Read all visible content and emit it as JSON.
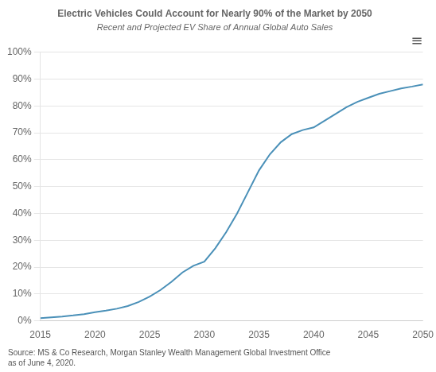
{
  "chart_data": {
    "type": "line",
    "title": "Electric Vehicles Could Account for Nearly 90% of the Market by 2050",
    "subtitle": "Recent and Projected EV Share of Annual Global Auto Sales",
    "source": "Source: MS & Co Research, Morgan Stanley Wealth Management Global Investment Office\nas of June 4, 2020.",
    "annotations": [
      "≡"
    ],
    "x": [
      2015,
      2016,
      2017,
      2018,
      2019,
      2020,
      2021,
      2022,
      2023,
      2024,
      2025,
      2026,
      2027,
      2028,
      2029,
      2030,
      2031,
      2032,
      2033,
      2034,
      2035,
      2036,
      2037,
      2038,
      2039,
      2040,
      2041,
      2042,
      2043,
      2044,
      2045,
      2046,
      2047,
      2048,
      2049,
      2050
    ],
    "values": [
      1.0,
      1.3,
      1.6,
      2.0,
      2.5,
      3.2,
      3.8,
      4.5,
      5.5,
      7.0,
      9.0,
      11.5,
      14.5,
      18.0,
      20.5,
      22.0,
      27.0,
      33.0,
      40.0,
      48.0,
      56.0,
      62.0,
      66.5,
      69.5,
      71.0,
      72.0,
      74.5,
      77.0,
      79.5,
      81.5,
      83.0,
      84.5,
      85.5,
      86.5,
      87.2,
      88.0
    ],
    "color": "#4a90b8",
    "xlim": [
      2015,
      2050
    ],
    "ylim": [
      0,
      100
    ],
    "xticks": [
      2015,
      2020,
      2025,
      2030,
      2035,
      2040,
      2045,
      2050
    ],
    "yticks": [
      {
        "value": 0,
        "label": "0%"
      },
      {
        "value": 10,
        "label": "10%"
      },
      {
        "value": 20,
        "label": "20%"
      },
      {
        "value": 30,
        "label": "30%"
      },
      {
        "value": 40,
        "label": "40%"
      },
      {
        "value": 50,
        "label": "50%"
      },
      {
        "value": 60,
        "label": "60%"
      },
      {
        "value": 70,
        "label": "70%"
      },
      {
        "value": 80,
        "label": "80%"
      },
      {
        "value": 90,
        "label": "90%"
      },
      {
        "value": 100,
        "label": "100%"
      }
    ],
    "grid": true
  }
}
